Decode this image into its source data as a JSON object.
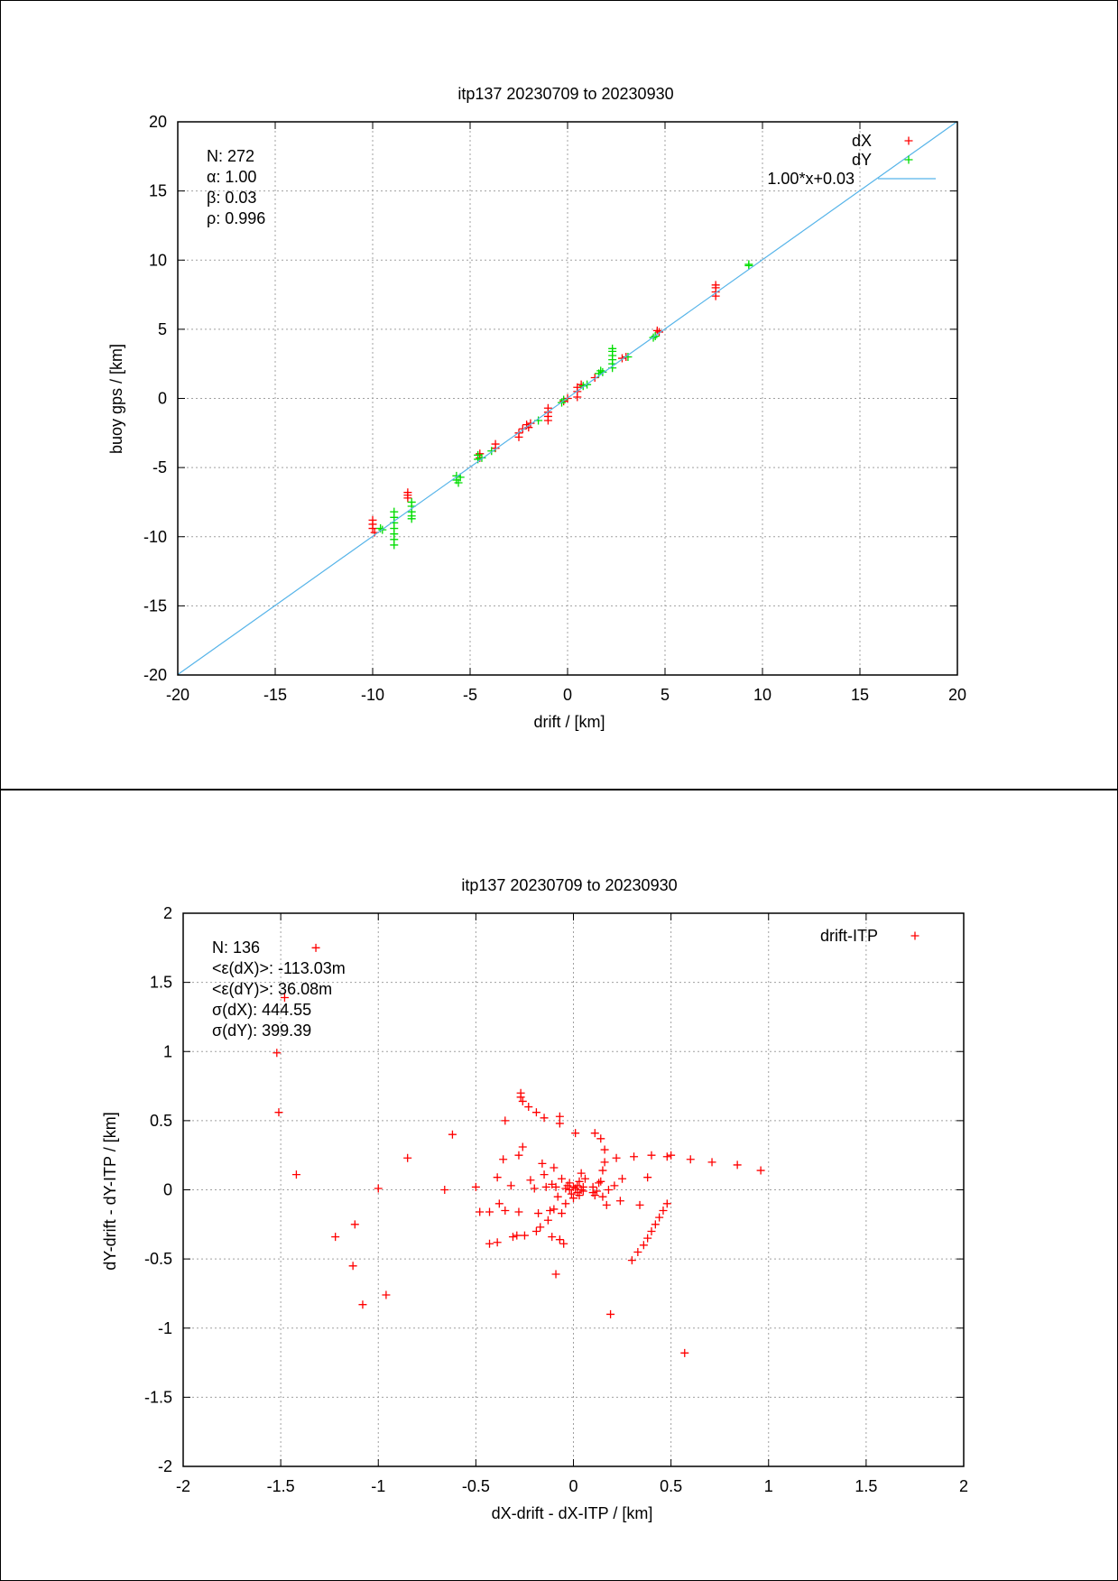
{
  "chart_data": [
    {
      "type": "scatter",
      "title": "itp137 20230709 to 20230930",
      "xlabel": "drift / [km]",
      "ylabel": "buoy gps / [km]",
      "xlim": [
        -20,
        20
      ],
      "ylim": [
        -20,
        20
      ],
      "xticks": [
        -20,
        -15,
        -10,
        -5,
        0,
        5,
        10,
        15,
        20
      ],
      "yticks": [
        -20,
        -15,
        -10,
        -5,
        0,
        5,
        10,
        15,
        20
      ],
      "grid": true,
      "legend_position": "top-right",
      "stats": [
        "N: 272",
        "α: 1.00",
        "β: 0.03",
        "ρ: 0.996"
      ],
      "series": [
        {
          "name": "dX",
          "color": "#ff0000",
          "marker": "plus",
          "points": [
            [
              -10.0,
              -8.8
            ],
            [
              -10.0,
              -9.1
            ],
            [
              -10.0,
              -9.4
            ],
            [
              -9.9,
              -9.7
            ],
            [
              -8.2,
              -6.8
            ],
            [
              -8.2,
              -7.0
            ],
            [
              -8.2,
              -7.2
            ],
            [
              -4.5,
              -4.0
            ],
            [
              -4.5,
              -4.3
            ],
            [
              -3.7,
              -3.3
            ],
            [
              -3.7,
              -3.6
            ],
            [
              -2.5,
              -2.5
            ],
            [
              -2.5,
              -2.8
            ],
            [
              -2.3,
              -2.2
            ],
            [
              -2.1,
              -1.9
            ],
            [
              -2.0,
              -2.1
            ],
            [
              -1.9,
              -1.8
            ],
            [
              -1.0,
              -0.7
            ],
            [
              -1.0,
              -1.0
            ],
            [
              -1.0,
              -1.3
            ],
            [
              -1.0,
              -1.6
            ],
            [
              -0.2,
              -0.2
            ],
            [
              0.0,
              0.0
            ],
            [
              0.5,
              0.1
            ],
            [
              0.5,
              0.5
            ],
            [
              0.5,
              0.8
            ],
            [
              0.7,
              1.0
            ],
            [
              1.4,
              1.5
            ],
            [
              2.8,
              2.9
            ],
            [
              3.0,
              3.0
            ],
            [
              4.6,
              4.9
            ],
            [
              4.7,
              4.8
            ],
            [
              7.6,
              7.4
            ],
            [
              7.6,
              7.7
            ],
            [
              7.6,
              8.0
            ],
            [
              7.6,
              8.2
            ]
          ]
        },
        {
          "name": "dY",
          "color": "#00dd00",
          "marker": "plus",
          "points": [
            [
              -9.6,
              -9.4
            ],
            [
              -9.5,
              -9.5
            ],
            [
              -8.9,
              -8.2
            ],
            [
              -8.9,
              -8.6
            ],
            [
              -8.9,
              -9.0
            ],
            [
              -8.9,
              -9.4
            ],
            [
              -8.9,
              -9.8
            ],
            [
              -8.9,
              -10.2
            ],
            [
              -8.9,
              -10.6
            ],
            [
              -8.0,
              -7.5
            ],
            [
              -8.0,
              -7.8
            ],
            [
              -8.0,
              -8.2
            ],
            [
              -8.0,
              -8.5
            ],
            [
              -8.0,
              -8.7
            ],
            [
              -5.7,
              -5.6
            ],
            [
              -5.7,
              -5.9
            ],
            [
              -5.6,
              -6.1
            ],
            [
              -5.5,
              -5.7
            ],
            [
              -4.6,
              -4.1
            ],
            [
              -4.6,
              -4.4
            ],
            [
              -4.4,
              -4.3
            ],
            [
              -3.9,
              -3.8
            ],
            [
              -1.5,
              -1.6
            ],
            [
              -0.3,
              -0.3
            ],
            [
              -0.2,
              -0.1
            ],
            [
              0.8,
              0.9
            ],
            [
              1.0,
              1.0
            ],
            [
              1.6,
              1.8
            ],
            [
              1.7,
              2.0
            ],
            [
              1.8,
              1.9
            ],
            [
              2.3,
              2.2
            ],
            [
              2.3,
              2.5
            ],
            [
              2.3,
              2.8
            ],
            [
              2.3,
              3.1
            ],
            [
              2.3,
              3.4
            ],
            [
              2.3,
              3.6
            ],
            [
              3.1,
              3.0
            ],
            [
              4.4,
              4.4
            ],
            [
              4.5,
              4.5
            ],
            [
              9.3,
              9.6
            ],
            [
              9.3,
              9.7
            ]
          ]
        },
        {
          "name": "1.00*x+0.03",
          "color": "#56b4e9",
          "kind": "line",
          "slope": 1.0,
          "intercept": 0.03
        }
      ]
    },
    {
      "type": "scatter",
      "title": "itp137 20230709 to 20230930",
      "xlabel": "dX-drift - dX-ITP / [km]",
      "ylabel": "dY-drift - dY-ITP / [km]",
      "xlim": [
        -2,
        2
      ],
      "ylim": [
        -2,
        2
      ],
      "xticks": [
        -2,
        -1.5,
        -1,
        -0.5,
        0,
        0.5,
        1,
        1.5,
        2
      ],
      "yticks": [
        -2,
        -1.5,
        -1,
        -0.5,
        0,
        0.5,
        1,
        1.5,
        2
      ],
      "grid": true,
      "legend_position": "top-right",
      "stats": [
        "N: 136",
        "<ε(dX)>:  -113.03m",
        "<ε(dY)>: 36.08m",
        "σ(dX):  444.55",
        "σ(dY):  399.39"
      ],
      "series": [
        {
          "name": "drift-ITP",
          "color": "#ff0000",
          "marker": "plus",
          "points": [
            [
              -1.32,
              1.75
            ],
            [
              -1.48,
              1.39
            ],
            [
              -1.52,
              0.99
            ],
            [
              -1.51,
              0.56
            ],
            [
              -1.42,
              0.11
            ],
            [
              -1.22,
              -0.34
            ],
            [
              -1.12,
              -0.25
            ],
            [
              -1.13,
              -0.55
            ],
            [
              -1.08,
              -0.83
            ],
            [
              -1.0,
              0.01
            ],
            [
              -0.96,
              -0.76
            ],
            [
              -0.85,
              0.23
            ],
            [
              -0.66,
              0.0
            ],
            [
              -0.62,
              0.4
            ],
            [
              -0.5,
              0.02
            ],
            [
              -0.48,
              -0.16
            ],
            [
              -0.43,
              -0.16
            ],
            [
              -0.43,
              -0.39
            ],
            [
              -0.39,
              -0.38
            ],
            [
              -0.39,
              0.09
            ],
            [
              -0.38,
              -0.1
            ],
            [
              -0.36,
              0.22
            ],
            [
              -0.35,
              -0.15
            ],
            [
              -0.35,
              0.5
            ],
            [
              -0.32,
              0.03
            ],
            [
              -0.31,
              -0.34
            ],
            [
              -0.29,
              -0.33
            ],
            [
              -0.28,
              0.25
            ],
            [
              -0.28,
              -0.16
            ],
            [
              -0.27,
              0.67
            ],
            [
              -0.27,
              0.7
            ],
            [
              -0.26,
              0.31
            ],
            [
              -0.26,
              0.64
            ],
            [
              -0.25,
              -0.33
            ],
            [
              -0.23,
              0.6
            ],
            [
              -0.22,
              0.07
            ],
            [
              -0.2,
              0.01
            ],
            [
              -0.19,
              0.56
            ],
            [
              -0.19,
              -0.3
            ],
            [
              -0.18,
              -0.17
            ],
            [
              -0.17,
              -0.27
            ],
            [
              -0.16,
              0.19
            ],
            [
              -0.15,
              0.11
            ],
            [
              -0.15,
              0.52
            ],
            [
              -0.14,
              0.02
            ],
            [
              -0.13,
              -0.22
            ],
            [
              -0.12,
              -0.15
            ],
            [
              -0.11,
              -0.34
            ],
            [
              -0.11,
              0.04
            ],
            [
              -0.1,
              -0.14
            ],
            [
              -0.1,
              0.16
            ],
            [
              -0.09,
              -0.61
            ],
            [
              -0.09,
              0.02
            ],
            [
              -0.08,
              -0.05
            ],
            [
              -0.07,
              -0.36
            ],
            [
              -0.07,
              0.53
            ],
            [
              -0.07,
              0.48
            ],
            [
              -0.06,
              0.08
            ],
            [
              -0.06,
              -0.17
            ],
            [
              -0.05,
              -0.39
            ],
            [
              -0.04,
              -0.1
            ],
            [
              -0.04,
              0.01
            ],
            [
              -0.03,
              0.03
            ],
            [
              -0.02,
              0.0
            ],
            [
              -0.02,
              0.05
            ],
            [
              -0.01,
              -0.03
            ],
            [
              0.0,
              0.02
            ],
            [
              0.0,
              -0.06
            ],
            [
              0.01,
              0.01
            ],
            [
              0.01,
              0.41
            ],
            [
              0.02,
              0.03
            ],
            [
              0.02,
              -0.02
            ],
            [
              0.03,
              0.06
            ],
            [
              0.03,
              -0.04
            ],
            [
              0.04,
              0.0
            ],
            [
              0.04,
              0.12
            ],
            [
              0.05,
              -0.01
            ],
            [
              0.05,
              0.02
            ],
            [
              0.06,
              0.08
            ],
            [
              0.1,
              -0.02
            ],
            [
              0.1,
              0.02
            ],
            [
              0.11,
              -0.04
            ],
            [
              0.11,
              0.41
            ],
            [
              0.12,
              -0.01
            ],
            [
              0.13,
              0.05
            ],
            [
              0.14,
              0.06
            ],
            [
              0.14,
              0.37
            ],
            [
              0.15,
              0.14
            ],
            [
              0.15,
              -0.05
            ],
            [
              0.16,
              0.29
            ],
            [
              0.16,
              0.2
            ],
            [
              0.17,
              -0.11
            ],
            [
              0.18,
              0.0
            ],
            [
              0.19,
              -0.9
            ],
            [
              0.21,
              0.03
            ],
            [
              0.22,
              0.23
            ],
            [
              0.24,
              -0.08
            ],
            [
              0.25,
              0.08
            ],
            [
              0.3,
              -0.51
            ],
            [
              0.31,
              0.24
            ],
            [
              0.33,
              -0.45
            ],
            [
              0.34,
              -0.11
            ],
            [
              0.36,
              -0.4
            ],
            [
              0.38,
              -0.35
            ],
            [
              0.38,
              0.09
            ],
            [
              0.4,
              -0.3
            ],
            [
              0.4,
              0.25
            ],
            [
              0.42,
              -0.25
            ],
            [
              0.44,
              -0.2
            ],
            [
              0.46,
              -0.15
            ],
            [
              0.48,
              -0.1
            ],
            [
              0.48,
              0.24
            ],
            [
              0.5,
              0.25
            ],
            [
              0.57,
              -1.18
            ],
            [
              0.6,
              0.22
            ],
            [
              0.71,
              0.2
            ],
            [
              0.84,
              0.18
            ],
            [
              0.96,
              0.14
            ]
          ]
        }
      ]
    }
  ]
}
